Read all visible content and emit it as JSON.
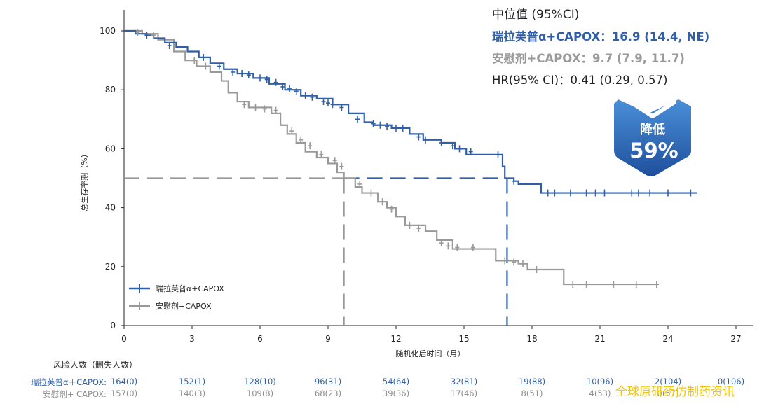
{
  "chart_data": {
    "type": "line",
    "subtype": "kaplan-meier-step",
    "xlabel": "随机化后时间（月）",
    "ylabel": "总生存率期（%）",
    "xlim": [
      0,
      27
    ],
    "ylim": [
      0,
      100
    ],
    "xticks": [
      0,
      3,
      6,
      9,
      12,
      15,
      18,
      21,
      24,
      27
    ],
    "yticks": [
      0,
      20,
      40,
      60,
      80,
      100
    ],
    "grid": false,
    "legend_position": "bottom-left",
    "reference_line": {
      "y": 50,
      "style": "dashed"
    },
    "median_lines": [
      9.7,
      16.9
    ],
    "series": [
      {
        "name": "瑞拉芙普α+CAPOX",
        "color": "#2f5fa8",
        "x": [
          0,
          0.5,
          1.0,
          1.3,
          1.8,
          2.3,
          2.8,
          3.3,
          3.8,
          4.4,
          5.0,
          5.7,
          6.4,
          7.1,
          7.8,
          8.5,
          9.2,
          9.9,
          10.6,
          11.0,
          11.8,
          12.6,
          13.2,
          14.0,
          14.6,
          15.1,
          16.3,
          16.7,
          16.8,
          17.2,
          17.4,
          18.4,
          25.3
        ],
        "y": [
          100,
          99,
          98.5,
          97.5,
          96,
          94.5,
          93,
          91,
          89,
          87,
          85.5,
          84,
          82,
          80,
          78,
          77,
          75,
          72,
          69,
          68,
          67,
          65,
          63,
          62,
          60,
          58,
          58,
          54,
          50,
          49,
          48,
          45,
          45
        ],
        "censor_x": [
          1.0,
          2.0,
          3.5,
          4.2,
          4.8,
          5.2,
          5.5,
          6.0,
          6.3,
          6.7,
          7.0,
          7.3,
          7.6,
          8.0,
          8.3,
          8.8,
          9.0,
          9.2,
          9.6,
          10.3,
          11.0,
          11.3,
          11.6,
          12.0,
          12.3,
          13.0,
          13.3,
          14.0,
          14.5,
          14.8,
          15.3,
          16.5,
          17.2,
          18.7,
          19.0,
          19.7,
          20.4,
          20.8,
          21.2,
          22.4,
          22.7,
          23.2,
          24.0,
          25.0
        ],
        "censor_y": [
          98.5,
          95,
          91,
          88,
          86,
          85.5,
          85,
          84,
          83.5,
          82.5,
          81,
          80.5,
          79.5,
          78,
          77.5,
          76,
          75.5,
          75,
          74,
          70,
          68.5,
          68,
          67.5,
          67,
          67,
          64,
          63,
          62,
          61,
          60,
          59,
          58,
          49,
          45,
          45,
          45,
          45,
          45,
          45,
          45,
          45,
          45,
          45,
          45
        ]
      },
      {
        "name": "安慰剂+CAPOX",
        "color": "#999999",
        "x": [
          0,
          0.8,
          1.5,
          2.2,
          2.7,
          3.2,
          3.8,
          4.3,
          4.6,
          5.0,
          5.5,
          6.5,
          6.9,
          7.2,
          7.6,
          8.0,
          8.5,
          9.0,
          9.4,
          9.7,
          10.2,
          10.5,
          11.2,
          11.6,
          12.0,
          12.4,
          13.3,
          13.8,
          14.5,
          16.0,
          16.4,
          17.4,
          17.8,
          19.2,
          19.4,
          23.6
        ],
        "y": [
          100,
          99,
          97,
          93,
          90,
          88,
          86,
          83,
          79,
          76,
          74,
          72,
          68,
          65,
          62,
          59,
          57,
          55,
          52,
          50,
          47,
          45,
          42,
          40,
          37,
          34,
          32,
          29,
          26,
          26,
          22,
          21,
          19,
          19,
          14,
          14
        ],
        "censor_x": [
          0.6,
          1.3,
          3.1,
          3.6,
          5.3,
          5.8,
          6.2,
          6.7,
          7.4,
          7.8,
          8.2,
          8.7,
          9.3,
          9.6,
          10.4,
          10.9,
          11.4,
          11.8,
          12.6,
          13.0,
          14.0,
          14.3,
          14.7,
          15.4,
          16.8,
          17.2,
          17.6,
          18.2,
          19.8,
          20.4,
          21.6,
          22.6,
          23.5
        ],
        "censor_y": [
          99.5,
          98.5,
          90,
          88,
          75,
          74,
          73.5,
          73,
          66,
          63,
          61,
          58,
          56,
          54,
          48,
          45,
          42,
          39.5,
          34,
          33,
          28,
          27,
          26.5,
          26.5,
          22,
          21.5,
          21,
          19,
          14,
          14,
          14,
          14,
          14
        ]
      }
    ]
  },
  "annotation": {
    "header": "中位值 (95%CI)",
    "series1": "瑞拉芙普α+CAPOX：16.9 (14.4, NE)",
    "series2": "安慰剂+CAPOX：9.7 (7.9, 11.7)",
    "hr": "HR(95% CI)：0.41 (0.29, 0.57)"
  },
  "badge": {
    "label": "降低",
    "value": "59%",
    "color_top": "#4a8fd8",
    "color_bottom": "#1f4f9c"
  },
  "risk_table": {
    "title": "风险人数（删失人数）",
    "rows": [
      {
        "label": "瑞拉芙普α＋CAPOX:",
        "values": [
          "164(0)",
          "152(1)",
          "128(10)",
          "96(31)",
          "54(64)",
          "32(81)",
          "19(88)",
          "10(96)",
          "2(104)",
          "0(106)"
        ]
      },
      {
        "label": "安慰剂+ CAPOX:",
        "values": [
          "157(0)",
          "140(3)",
          "109(8)",
          "68(23)",
          "39(36)",
          "17(46)",
          "8(51)",
          "4(53)",
          "0(57)",
          ""
        ]
      }
    ]
  },
  "watermark": "全球原研药仿制药资讯"
}
